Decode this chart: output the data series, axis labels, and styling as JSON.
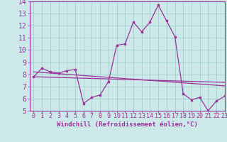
{
  "xlabel": "Windchill (Refroidissement éolien,°C)",
  "x_hours": [
    0,
    1,
    2,
    3,
    4,
    5,
    6,
    7,
    8,
    9,
    10,
    11,
    12,
    13,
    14,
    15,
    16,
    17,
    18,
    19,
    20,
    21,
    22,
    23
  ],
  "line1_y": [
    7.8,
    8.5,
    8.2,
    8.1,
    8.3,
    8.4,
    5.6,
    6.1,
    6.3,
    7.4,
    10.4,
    10.5,
    12.3,
    11.5,
    12.3,
    13.7,
    12.4,
    11.1,
    6.4,
    5.9,
    6.1,
    5.0,
    5.8,
    6.2
  ],
  "line2_y": [
    8.2,
    8.15,
    8.1,
    8.05,
    8.0,
    7.95,
    7.9,
    7.85,
    7.8,
    7.75,
    7.7,
    7.65,
    7.6,
    7.55,
    7.5,
    7.45,
    7.4,
    7.35,
    7.3,
    7.25,
    7.2,
    7.15,
    7.1,
    7.05
  ],
  "line3_y": [
    7.8,
    7.78,
    7.76,
    7.74,
    7.72,
    7.7,
    7.68,
    7.66,
    7.64,
    7.62,
    7.6,
    7.58,
    7.56,
    7.54,
    7.52,
    7.5,
    7.48,
    7.46,
    7.44,
    7.42,
    7.4,
    7.38,
    7.36,
    7.34
  ],
  "line_color": "#993399",
  "bg_color": "#cce8e8",
  "grid_color": "#99cccc",
  "ylim": [
    5,
    14
  ],
  "yticks": [
    5,
    6,
    7,
    8,
    9,
    10,
    11,
    12,
    13,
    14
  ],
  "xlim": [
    -0.5,
    23
  ],
  "tick_fontsize": 6,
  "label_fontsize": 6.5
}
